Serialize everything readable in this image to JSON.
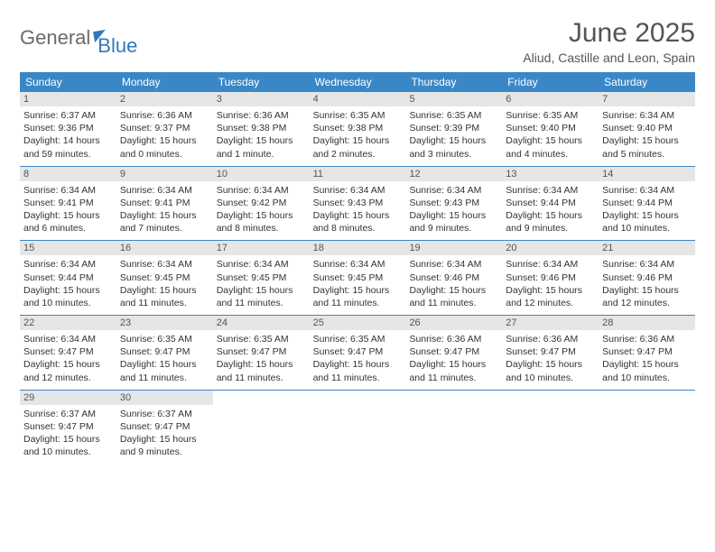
{
  "brand": {
    "general": "General",
    "blue": "Blue"
  },
  "title": "June 2025",
  "location": "Aliud, Castille and Leon, Spain",
  "colors": {
    "header_bg": "#3a87c7",
    "header_text": "#ffffff",
    "daynum_bg": "#e6e6e6",
    "text": "#333333",
    "rule": "#3a87c7"
  },
  "daysOfWeek": [
    "Sunday",
    "Monday",
    "Tuesday",
    "Wednesday",
    "Thursday",
    "Friday",
    "Saturday"
  ],
  "weeks": [
    [
      {
        "n": "1",
        "sr": "Sunrise: 6:37 AM",
        "ss": "Sunset: 9:36 PM",
        "d1": "Daylight: 14 hours",
        "d2": "and 59 minutes."
      },
      {
        "n": "2",
        "sr": "Sunrise: 6:36 AM",
        "ss": "Sunset: 9:37 PM",
        "d1": "Daylight: 15 hours",
        "d2": "and 0 minutes."
      },
      {
        "n": "3",
        "sr": "Sunrise: 6:36 AM",
        "ss": "Sunset: 9:38 PM",
        "d1": "Daylight: 15 hours",
        "d2": "and 1 minute."
      },
      {
        "n": "4",
        "sr": "Sunrise: 6:35 AM",
        "ss": "Sunset: 9:38 PM",
        "d1": "Daylight: 15 hours",
        "d2": "and 2 minutes."
      },
      {
        "n": "5",
        "sr": "Sunrise: 6:35 AM",
        "ss": "Sunset: 9:39 PM",
        "d1": "Daylight: 15 hours",
        "d2": "and 3 minutes."
      },
      {
        "n": "6",
        "sr": "Sunrise: 6:35 AM",
        "ss": "Sunset: 9:40 PM",
        "d1": "Daylight: 15 hours",
        "d2": "and 4 minutes."
      },
      {
        "n": "7",
        "sr": "Sunrise: 6:34 AM",
        "ss": "Sunset: 9:40 PM",
        "d1": "Daylight: 15 hours",
        "d2": "and 5 minutes."
      }
    ],
    [
      {
        "n": "8",
        "sr": "Sunrise: 6:34 AM",
        "ss": "Sunset: 9:41 PM",
        "d1": "Daylight: 15 hours",
        "d2": "and 6 minutes."
      },
      {
        "n": "9",
        "sr": "Sunrise: 6:34 AM",
        "ss": "Sunset: 9:41 PM",
        "d1": "Daylight: 15 hours",
        "d2": "and 7 minutes."
      },
      {
        "n": "10",
        "sr": "Sunrise: 6:34 AM",
        "ss": "Sunset: 9:42 PM",
        "d1": "Daylight: 15 hours",
        "d2": "and 8 minutes."
      },
      {
        "n": "11",
        "sr": "Sunrise: 6:34 AM",
        "ss": "Sunset: 9:43 PM",
        "d1": "Daylight: 15 hours",
        "d2": "and 8 minutes."
      },
      {
        "n": "12",
        "sr": "Sunrise: 6:34 AM",
        "ss": "Sunset: 9:43 PM",
        "d1": "Daylight: 15 hours",
        "d2": "and 9 minutes."
      },
      {
        "n": "13",
        "sr": "Sunrise: 6:34 AM",
        "ss": "Sunset: 9:44 PM",
        "d1": "Daylight: 15 hours",
        "d2": "and 9 minutes."
      },
      {
        "n": "14",
        "sr": "Sunrise: 6:34 AM",
        "ss": "Sunset: 9:44 PM",
        "d1": "Daylight: 15 hours",
        "d2": "and 10 minutes."
      }
    ],
    [
      {
        "n": "15",
        "sr": "Sunrise: 6:34 AM",
        "ss": "Sunset: 9:44 PM",
        "d1": "Daylight: 15 hours",
        "d2": "and 10 minutes."
      },
      {
        "n": "16",
        "sr": "Sunrise: 6:34 AM",
        "ss": "Sunset: 9:45 PM",
        "d1": "Daylight: 15 hours",
        "d2": "and 11 minutes."
      },
      {
        "n": "17",
        "sr": "Sunrise: 6:34 AM",
        "ss": "Sunset: 9:45 PM",
        "d1": "Daylight: 15 hours",
        "d2": "and 11 minutes."
      },
      {
        "n": "18",
        "sr": "Sunrise: 6:34 AM",
        "ss": "Sunset: 9:45 PM",
        "d1": "Daylight: 15 hours",
        "d2": "and 11 minutes."
      },
      {
        "n": "19",
        "sr": "Sunrise: 6:34 AM",
        "ss": "Sunset: 9:46 PM",
        "d1": "Daylight: 15 hours",
        "d2": "and 11 minutes."
      },
      {
        "n": "20",
        "sr": "Sunrise: 6:34 AM",
        "ss": "Sunset: 9:46 PM",
        "d1": "Daylight: 15 hours",
        "d2": "and 12 minutes."
      },
      {
        "n": "21",
        "sr": "Sunrise: 6:34 AM",
        "ss": "Sunset: 9:46 PM",
        "d1": "Daylight: 15 hours",
        "d2": "and 12 minutes."
      }
    ],
    [
      {
        "n": "22",
        "sr": "Sunrise: 6:34 AM",
        "ss": "Sunset: 9:47 PM",
        "d1": "Daylight: 15 hours",
        "d2": "and 12 minutes."
      },
      {
        "n": "23",
        "sr": "Sunrise: 6:35 AM",
        "ss": "Sunset: 9:47 PM",
        "d1": "Daylight: 15 hours",
        "d2": "and 11 minutes."
      },
      {
        "n": "24",
        "sr": "Sunrise: 6:35 AM",
        "ss": "Sunset: 9:47 PM",
        "d1": "Daylight: 15 hours",
        "d2": "and 11 minutes."
      },
      {
        "n": "25",
        "sr": "Sunrise: 6:35 AM",
        "ss": "Sunset: 9:47 PM",
        "d1": "Daylight: 15 hours",
        "d2": "and 11 minutes."
      },
      {
        "n": "26",
        "sr": "Sunrise: 6:36 AM",
        "ss": "Sunset: 9:47 PM",
        "d1": "Daylight: 15 hours",
        "d2": "and 11 minutes."
      },
      {
        "n": "27",
        "sr": "Sunrise: 6:36 AM",
        "ss": "Sunset: 9:47 PM",
        "d1": "Daylight: 15 hours",
        "d2": "and 10 minutes."
      },
      {
        "n": "28",
        "sr": "Sunrise: 6:36 AM",
        "ss": "Sunset: 9:47 PM",
        "d1": "Daylight: 15 hours",
        "d2": "and 10 minutes."
      }
    ],
    [
      {
        "n": "29",
        "sr": "Sunrise: 6:37 AM",
        "ss": "Sunset: 9:47 PM",
        "d1": "Daylight: 15 hours",
        "d2": "and 10 minutes."
      },
      {
        "n": "30",
        "sr": "Sunrise: 6:37 AM",
        "ss": "Sunset: 9:47 PM",
        "d1": "Daylight: 15 hours",
        "d2": "and 9 minutes."
      },
      {
        "empty": true
      },
      {
        "empty": true
      },
      {
        "empty": true
      },
      {
        "empty": true
      },
      {
        "empty": true
      }
    ]
  ]
}
